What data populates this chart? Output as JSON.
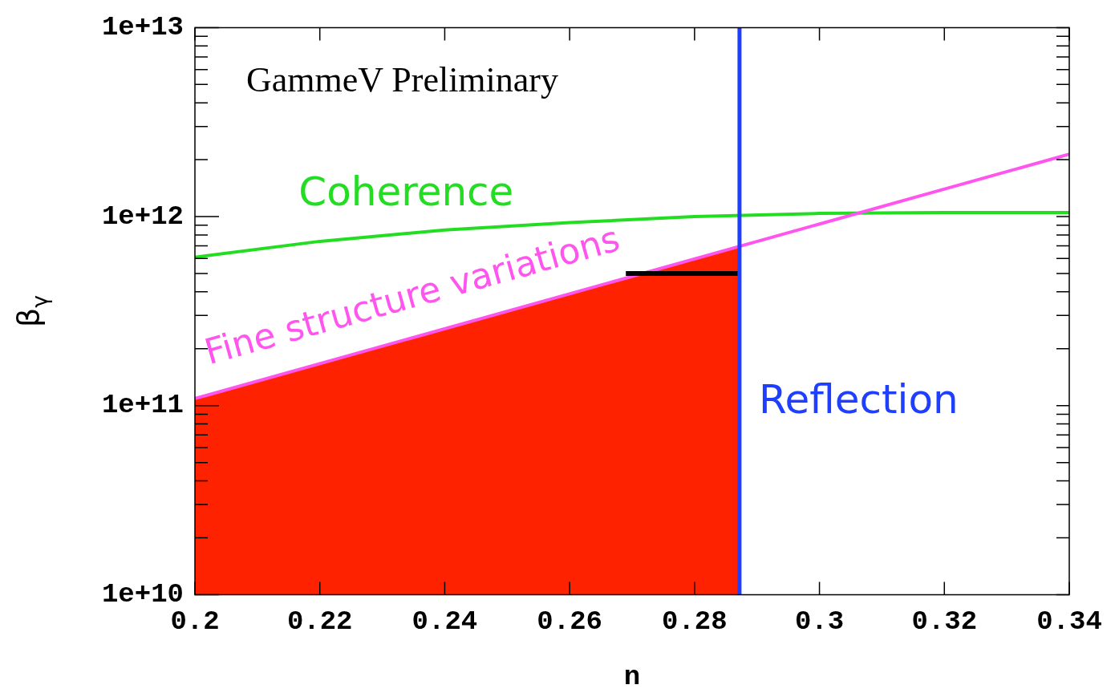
{
  "chart_data": {
    "type": "line",
    "xlabel": "n",
    "ylabel": "β$_{γ}$",
    "log": "y",
    "marker": "none",
    "xlim": [
      0.2,
      0.34
    ],
    "xticks": [
      0.2,
      0.22,
      0.24,
      0.26,
      0.28,
      0.3,
      0.32,
      0.34
    ],
    "ylim": [
      10000000000.0,
      10000000000000.0
    ],
    "yticks": [
      {
        "value": 10000000000.0,
        "label": "1e+10"
      },
      {
        "value": 20000000000.0,
        "label": null
      },
      {
        "value": 30000000000.0,
        "label": null
      },
      {
        "value": 40000000000.0,
        "label": null
      },
      {
        "value": 50000000000.0,
        "label": null
      },
      {
        "value": 60000000000.0,
        "label": null
      },
      {
        "value": 70000000000.0,
        "label": null
      },
      {
        "value": 80000000000.0,
        "label": null
      },
      {
        "value": 90000000000.0,
        "label": null
      },
      {
        "value": 100000000000.0,
        "label": "1e+11"
      },
      {
        "value": 200000000000.0,
        "label": null
      },
      {
        "value": 300000000000.0,
        "label": null
      },
      {
        "value": 400000000000.0,
        "label": null
      },
      {
        "value": 500000000000.0,
        "label": null
      },
      {
        "value": 600000000000.0,
        "label": null
      },
      {
        "value": 700000000000.0,
        "label": null
      },
      {
        "value": 800000000000.0,
        "label": null
      },
      {
        "value": 900000000000.0,
        "label": null
      },
      {
        "value": 1000000000000.0,
        "label": "1e+12"
      },
      {
        "value": 2000000000000.0,
        "label": null
      },
      {
        "value": 3000000000000.0,
        "label": null
      },
      {
        "value": 4000000000000.0,
        "label": null
      },
      {
        "value": 5000000000000.0,
        "label": null
      },
      {
        "value": 6000000000000.0,
        "label": null
      },
      {
        "value": 7000000000000.0,
        "label": null
      },
      {
        "value": 8000000000000.0,
        "label": null
      },
      {
        "value": 9000000000000.0,
        "label": null
      },
      {
        "value": 10000000000000.0,
        "label": "1e+13"
      }
    ],
    "annotations": [
      "GammeV Preliminary"
    ],
    "ref_lines": [
      {
        "axis": "x",
        "value": 0.2872,
        "label": "Reflection",
        "color": "#1f3fff"
      }
    ],
    "series": [
      {
        "type": "area",
        "color": "#ff2200",
        "x": [
          0.2,
          0.2872
        ],
        "values": [
          109000000000.0,
          698000000000.0
        ]
      },
      {
        "name": "Coherence",
        "color": "#22dd22",
        "x": [
          0.2,
          0.22,
          0.24,
          0.26,
          0.28,
          0.3,
          0.32,
          0.34
        ],
        "values": [
          610000000000.0,
          740000000000.0,
          850000000000.0,
          930000000000.0,
          1000000000000.0,
          1040000000000.0,
          1050000000000.0,
          1050000000000.0
        ]
      },
      {
        "name": "Fine structure variations",
        "color": "#ff55ee",
        "x": [
          0.2,
          0.34
        ],
        "values": [
          109000000000.0,
          2140000000000.0
        ]
      },
      {
        "color": "#000000",
        "x": [
          0.269,
          0.2873
        ],
        "values": [
          500000000000.0,
          500000000000.0
        ]
      }
    ]
  }
}
